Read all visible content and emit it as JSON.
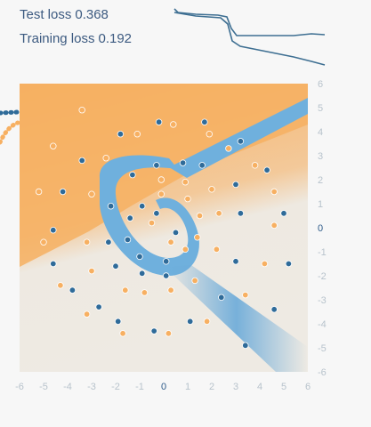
{
  "loss": {
    "test_label": "Test loss",
    "test_value": "0.368",
    "train_label": "Training loss",
    "train_value": "0.192"
  },
  "colors": {
    "positive": "#0877bd",
    "negative": "#f59322",
    "point_positive": "#2f6b99",
    "point_negative": "#f7b062",
    "loss_line": "#3e6f92",
    "axis_text": "#b8c3cc",
    "zero_text": "#2f5c8a"
  },
  "chart_data": {
    "type": "scatter",
    "xlim": [
      -6,
      6
    ],
    "ylim": [
      -6,
      6
    ],
    "x_ticks": [
      "-6",
      "-5",
      "-4",
      "-3",
      "-2",
      "-1",
      "0",
      "1",
      "2",
      "3",
      "4",
      "5",
      "6"
    ],
    "y_ticks": [
      "6",
      "5",
      "4",
      "3",
      "2",
      "1",
      "0",
      "-1",
      "-2",
      "-3",
      "-4",
      "-5",
      "-6"
    ],
    "dataset": "spiral",
    "series": [
      {
        "class": "blue",
        "points": [
          [
            -0.3,
            0.6
          ],
          [
            -0.9,
            0.9
          ],
          [
            -1.4,
            0.4
          ],
          [
            -1.5,
            -0.5
          ],
          [
            -1.0,
            -1.2
          ],
          [
            0.1,
            -1.4
          ],
          [
            0.5,
            -0.2
          ],
          [
            0.1,
            -2.0
          ],
          [
            -0.9,
            -1.9
          ],
          [
            -2.0,
            -1.6
          ],
          [
            -2.3,
            -0.6
          ],
          [
            -2.2,
            0.9
          ],
          [
            -1.3,
            2.2
          ],
          [
            -0.3,
            2.6
          ],
          [
            0.8,
            2.7
          ],
          [
            1.6,
            2.6
          ],
          [
            3.0,
            1.8
          ],
          [
            3.2,
            0.6
          ],
          [
            3.0,
            -1.4
          ],
          [
            2.4,
            -2.9
          ],
          [
            1.1,
            -3.9
          ],
          [
            -0.4,
            -4.3
          ],
          [
            -1.9,
            -3.9
          ],
          [
            -2.7,
            -3.3
          ],
          [
            -3.8,
            -2.6
          ],
          [
            -4.6,
            -1.5
          ],
          [
            -4.6,
            -0.1
          ],
          [
            -4.2,
            1.5
          ],
          [
            -3.4,
            2.8
          ],
          [
            -1.8,
            3.9
          ],
          [
            -0.2,
            4.4
          ],
          [
            1.7,
            4.4
          ],
          [
            3.2,
            3.6
          ],
          [
            4.3,
            2.4
          ],
          [
            5.0,
            0.6
          ],
          [
            5.2,
            -1.5
          ],
          [
            4.6,
            -3.4
          ],
          [
            3.4,
            -4.9
          ]
        ]
      },
      {
        "class": "orange",
        "points": [
          [
            0.3,
            -0.6
          ],
          [
            0.9,
            -0.9
          ],
          [
            1.4,
            -0.4
          ],
          [
            1.5,
            0.5
          ],
          [
            1.0,
            1.2
          ],
          [
            -0.1,
            1.4
          ],
          [
            -0.5,
            0.2
          ],
          [
            -0.1,
            2.0
          ],
          [
            0.9,
            1.9
          ],
          [
            2.0,
            1.6
          ],
          [
            2.3,
            0.6
          ],
          [
            2.2,
            -0.9
          ],
          [
            1.3,
            -2.2
          ],
          [
            0.3,
            -2.6
          ],
          [
            -0.8,
            -2.7
          ],
          [
            -1.6,
            -2.6
          ],
          [
            -3.0,
            -1.8
          ],
          [
            -3.2,
            -0.6
          ],
          [
            -3.0,
            1.4
          ],
          [
            -2.4,
            2.9
          ],
          [
            -1.1,
            3.9
          ],
          [
            0.4,
            4.3
          ],
          [
            1.9,
            3.9
          ],
          [
            2.7,
            3.3
          ],
          [
            3.8,
            2.6
          ],
          [
            4.6,
            1.5
          ],
          [
            4.6,
            0.1
          ],
          [
            4.2,
            -1.5
          ],
          [
            3.4,
            -2.8
          ],
          [
            1.8,
            -3.9
          ],
          [
            0.2,
            -4.4
          ],
          [
            -1.7,
            -4.4
          ],
          [
            -3.2,
            -3.6
          ],
          [
            -4.3,
            -2.4
          ],
          [
            -5.0,
            -0.6
          ],
          [
            -5.2,
            1.5
          ],
          [
            -4.6,
            3.4
          ],
          [
            -3.4,
            4.9
          ]
        ]
      }
    ]
  }
}
